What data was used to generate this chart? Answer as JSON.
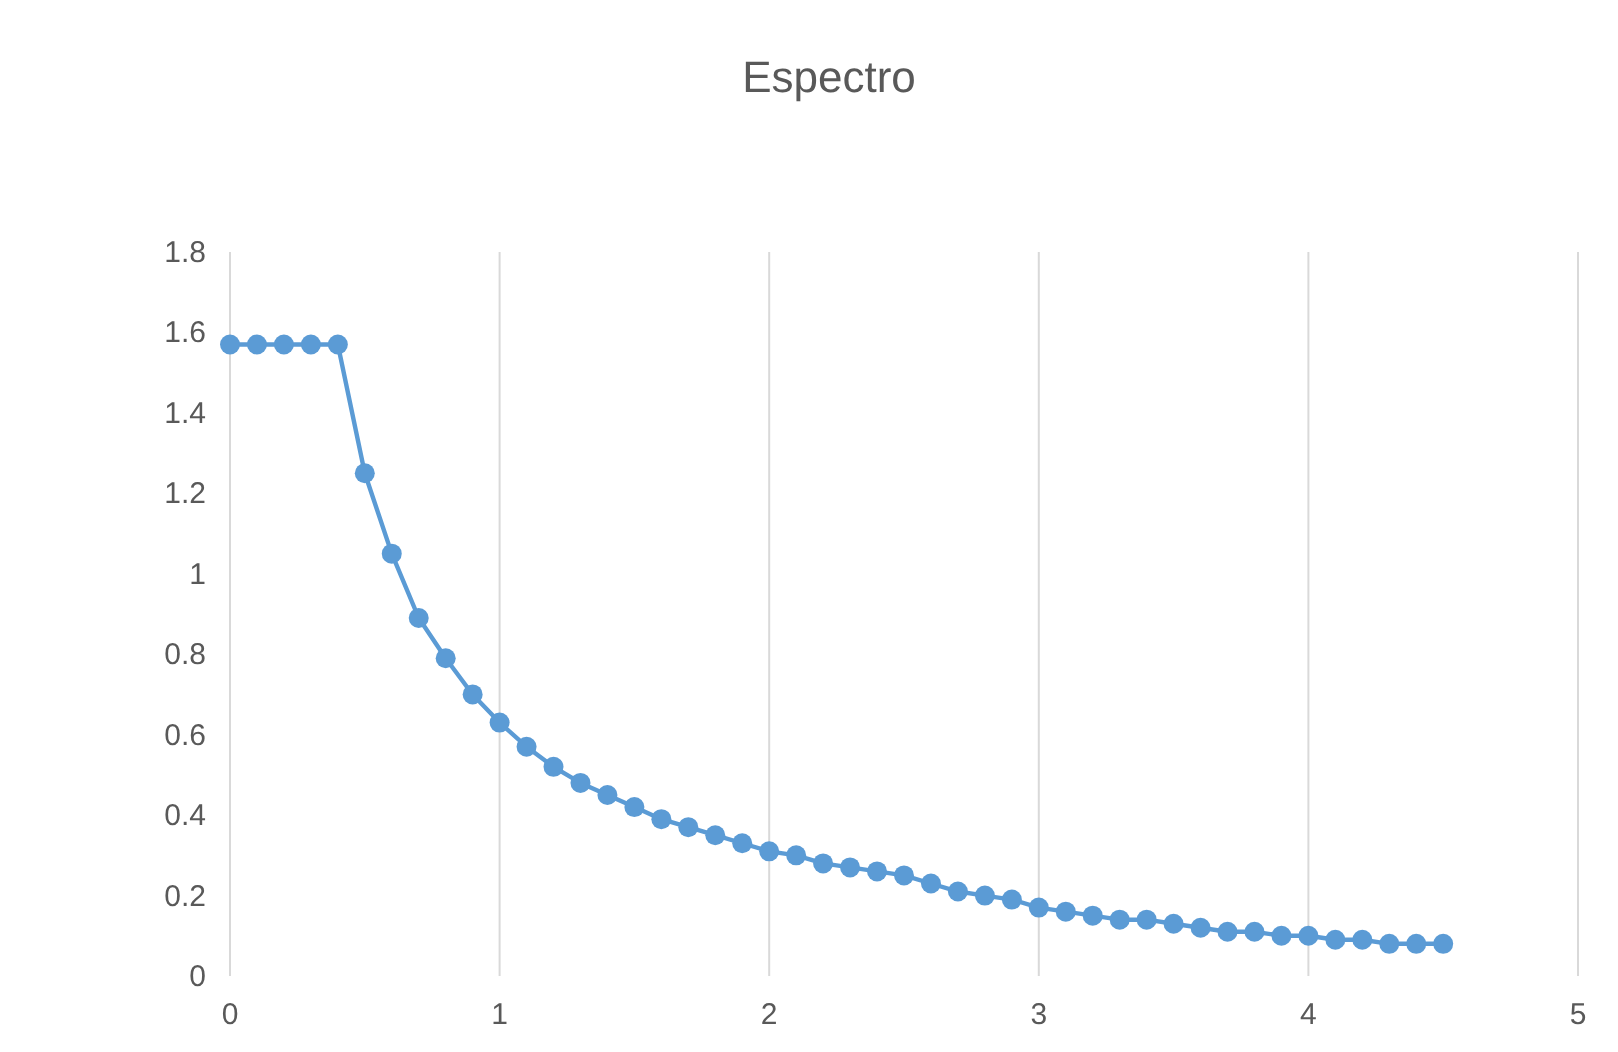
{
  "chart_data": {
    "type": "line",
    "title": "Espectro",
    "x": [
      0,
      0.1,
      0.2,
      0.3,
      0.4,
      0.5,
      0.6,
      0.7,
      0.8,
      0.9,
      1,
      1.1,
      1.2,
      1.3,
      1.4,
      1.5,
      1.6,
      1.7,
      1.8,
      1.9,
      2,
      2.1,
      2.2,
      2.3,
      2.4,
      2.5,
      2.6,
      2.7,
      2.8,
      2.9,
      3,
      3.1,
      3.2,
      3.3,
      3.4,
      3.5,
      3.6,
      3.7,
      3.8,
      3.9,
      4,
      4.1,
      4.2,
      4.3,
      4.4,
      4.5
    ],
    "series": [
      {
        "color": "#5b9bd5",
        "values": [
          1.57,
          1.57,
          1.57,
          1.57,
          1.57,
          1.25,
          1.05,
          0.89,
          0.79,
          0.7,
          0.63,
          0.57,
          0.52,
          0.48,
          0.45,
          0.42,
          0.39,
          0.37,
          0.35,
          0.33,
          0.31,
          0.3,
          0.28,
          0.27,
          0.26,
          0.25,
          0.23,
          0.21,
          0.2,
          0.19,
          0.17,
          0.16,
          0.15,
          0.14,
          0.14,
          0.13,
          0.12,
          0.11,
          0.11,
          0.1,
          0.1,
          0.09,
          0.09,
          0.08,
          0.08,
          0.08
        ]
      }
    ],
    "xlim": [
      0,
      5
    ],
    "xticks": [
      0,
      1,
      2,
      3,
      4,
      5
    ],
    "ylim": [
      0,
      1.8
    ],
    "yticks": [
      0,
      0.2,
      0.4,
      0.6,
      0.8,
      1,
      1.2,
      1.4,
      1.6,
      1.8
    ],
    "grid": "x",
    "marker": "circle",
    "line_style": "solid"
  }
}
